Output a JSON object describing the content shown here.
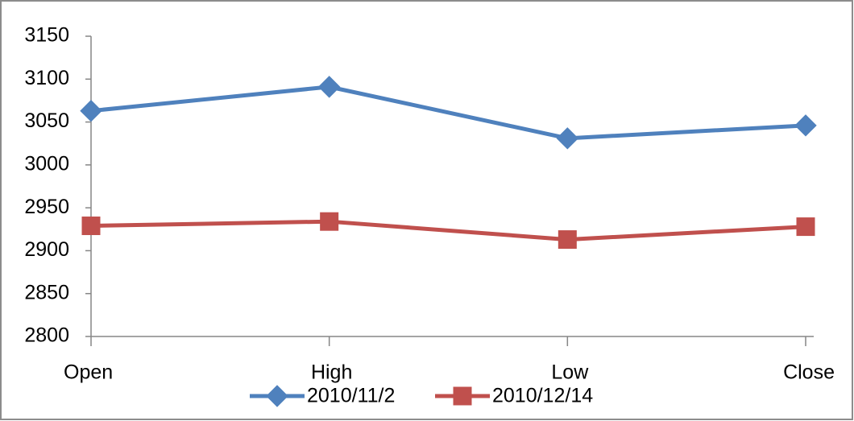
{
  "chart_data": {
    "type": "line",
    "categories": [
      "Open",
      "High",
      "Low",
      "Close"
    ],
    "series": [
      {
        "name": "2010/11/2",
        "color": "#4f81bd",
        "marker": "diamond",
        "values": [
          3063,
          3091,
          3031,
          3046
        ]
      },
      {
        "name": "2010/12/14",
        "color": "#c0504d",
        "marker": "square",
        "values": [
          2929,
          2934,
          2913,
          2928
        ]
      }
    ],
    "ylim": [
      2800,
      3150
    ],
    "yticks": [
      2800,
      2850,
      2900,
      2950,
      3000,
      3050,
      3100,
      3150
    ],
    "grid": false,
    "legend": "bottom"
  }
}
